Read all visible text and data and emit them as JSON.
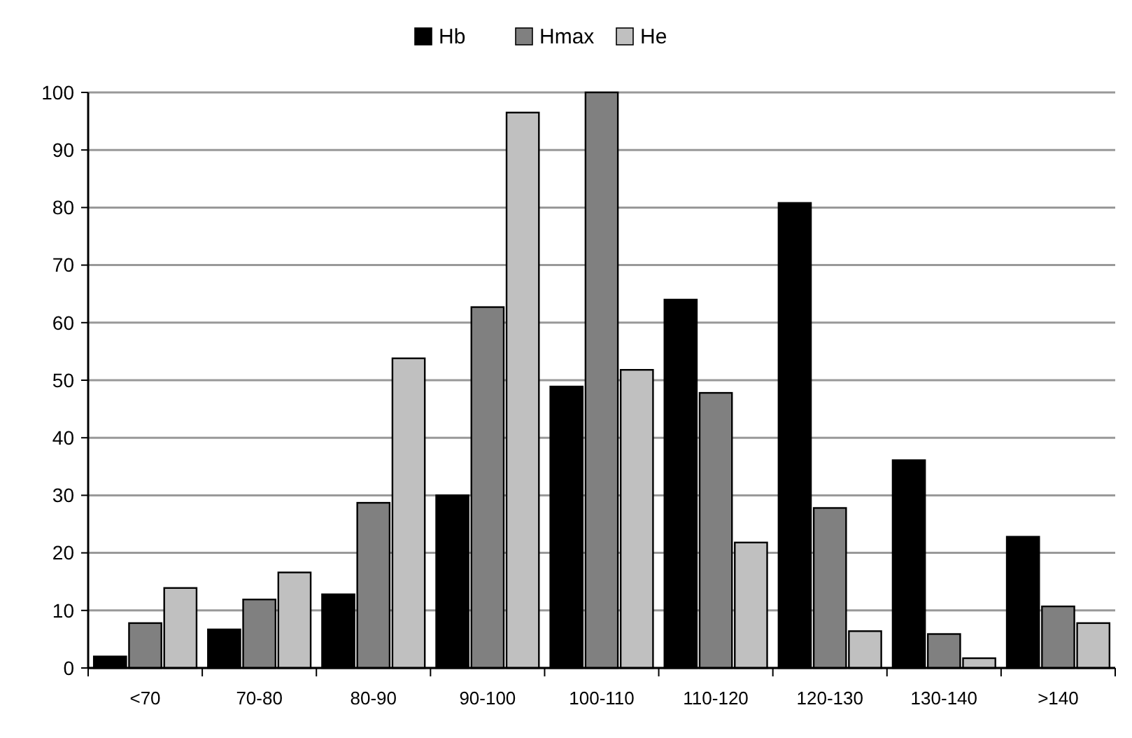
{
  "chart_data": {
    "type": "bar",
    "categories": [
      "<70",
      "70-80",
      "80-90",
      "90-100",
      "100-110",
      "110-120",
      "120-130",
      "130-140",
      ">140"
    ],
    "series": [
      {
        "name": "Hb",
        "color": "#000000",
        "values": [
          2,
          6.7,
          12.8,
          30,
          48.9,
          64,
          80.8,
          36.1,
          22.8
        ]
      },
      {
        "name": "Hmax",
        "color": "#808080",
        "values": [
          7.8,
          11.9,
          28.7,
          62.7,
          100,
          47.8,
          27.8,
          5.9,
          10.7
        ]
      },
      {
        "name": "He",
        "color": "#c0c0c0",
        "values": [
          13.9,
          16.6,
          53.8,
          96.5,
          51.8,
          21.8,
          6.4,
          1.7,
          7.8
        ]
      }
    ],
    "ylim": [
      0,
      100
    ],
    "yticks": [
      0,
      10,
      20,
      30,
      40,
      50,
      60,
      70,
      80,
      90,
      100
    ],
    "grid": "y",
    "legend": "top"
  }
}
